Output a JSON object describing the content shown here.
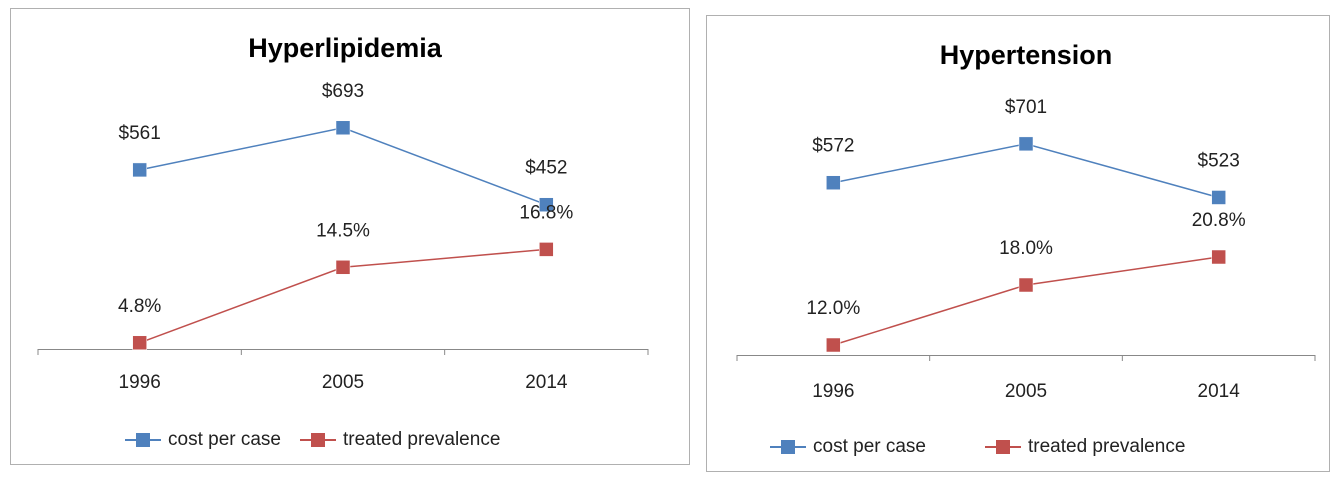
{
  "chart_data": [
    {
      "type": "line",
      "title": "Hyperlipidemia",
      "categories": [
        "1996",
        "2005",
        "2014"
      ],
      "series": [
        {
          "name": "cost per case",
          "color": "#4f81bd",
          "values": [
            561,
            693,
            452
          ],
          "value_labels": [
            "$561",
            "$693",
            "$452"
          ]
        },
        {
          "name": "treated prevalence",
          "color": "#c0504d",
          "axis": "y2",
          "values": [
            4.8,
            14.5,
            16.8
          ],
          "value_labels": [
            "4.8%",
            "14.5%",
            "16.8%"
          ]
        }
      ],
      "ylim": [
        0,
        780
      ],
      "y2lim": [
        4,
        36
      ],
      "legend": "bottom"
    },
    {
      "type": "line",
      "title": "Hypertension",
      "categories": [
        "1996",
        "2005",
        "2014"
      ],
      "series": [
        {
          "name": "cost per case",
          "color": "#4f81bd",
          "values": [
            572,
            701,
            523
          ],
          "value_labels": [
            "$572",
            "$701",
            "$523"
          ]
        },
        {
          "name": "treated prevalence",
          "color": "#c0504d",
          "axis": "y2",
          "values": [
            12.0,
            18.0,
            20.8
          ],
          "value_labels": [
            "12.0%",
            "18.0%",
            "20.8%"
          ]
        }
      ],
      "ylim": [
        0,
        830
      ],
      "y2lim": [
        11,
        36
      ],
      "legend": "bottom"
    }
  ]
}
